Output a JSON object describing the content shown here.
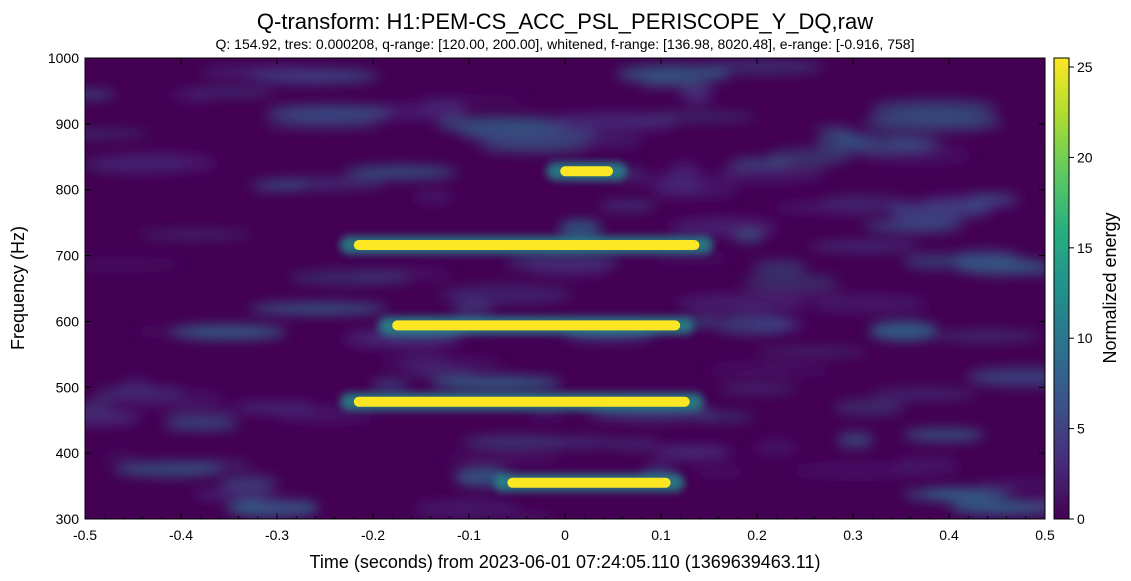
{
  "chart_data": {
    "type": "heatmap",
    "title": "Q-transform: H1:PEM-CS_ACC_PSL_PERISCOPE_Y_DQ,raw",
    "subtitle": "Q: 154.92, tres: 0.000208, q-range: [120.00, 200.00], whitened, f-range: [136.98, 8020.48], e-range: [-0.916, 758]",
    "xlabel": "Time (seconds) from 2023-06-01 07:24:05.110 (1369639463.11)",
    "ylabel": "Frequency (Hz)",
    "colorbar_label": "Normalized energy",
    "xlim": [
      -0.5,
      0.5
    ],
    "ylim": [
      300,
      1000
    ],
    "clim": [
      0,
      25.5
    ],
    "colormap": "viridis",
    "x_ticks": [
      {
        "value": -0.5,
        "label": "-0.5"
      },
      {
        "value": -0.4,
        "label": "-0.4"
      },
      {
        "value": -0.3,
        "label": "-0.3"
      },
      {
        "value": -0.2,
        "label": "-0.2"
      },
      {
        "value": -0.1,
        "label": "-0.1"
      },
      {
        "value": 0.0,
        "label": "0"
      },
      {
        "value": 0.1,
        "label": "0.1"
      },
      {
        "value": 0.2,
        "label": "0.2"
      },
      {
        "value": 0.3,
        "label": "0.3"
      },
      {
        "value": 0.4,
        "label": "0.4"
      },
      {
        "value": 0.5,
        "label": "0.5"
      }
    ],
    "y_ticks": [
      {
        "value": 300,
        "label": "300"
      },
      {
        "value": 400,
        "label": "400"
      },
      {
        "value": 500,
        "label": "500"
      },
      {
        "value": 600,
        "label": "600"
      },
      {
        "value": 700,
        "label": "700"
      },
      {
        "value": 800,
        "label": "800"
      },
      {
        "value": 900,
        "label": "900"
      },
      {
        "value": 1000,
        "label": "1000"
      }
    ],
    "colorbar_ticks": [
      {
        "value": 0,
        "label": "0"
      },
      {
        "value": 5,
        "label": "5"
      },
      {
        "value": 10,
        "label": "10"
      },
      {
        "value": 15,
        "label": "15"
      },
      {
        "value": 20,
        "label": "20"
      },
      {
        "value": 25,
        "label": "25"
      }
    ],
    "features": [
      {
        "name": "line-825",
        "t_start": -0.005,
        "t_end": 0.05,
        "freq_hz": 828,
        "energy": 25
      },
      {
        "name": "line-715",
        "t_start": -0.22,
        "t_end": 0.14,
        "freq_hz": 716,
        "energy": 25
      },
      {
        "name": "line-595",
        "t_start": -0.18,
        "t_end": 0.12,
        "freq_hz": 594,
        "energy": 25
      },
      {
        "name": "line-478",
        "t_start": -0.22,
        "t_end": 0.13,
        "freq_hz": 478,
        "energy": 25
      },
      {
        "name": "line-355",
        "t_start": -0.06,
        "t_end": 0.11,
        "freq_hz": 355,
        "energy": 25
      }
    ],
    "grid": false,
    "legend": "none"
  }
}
